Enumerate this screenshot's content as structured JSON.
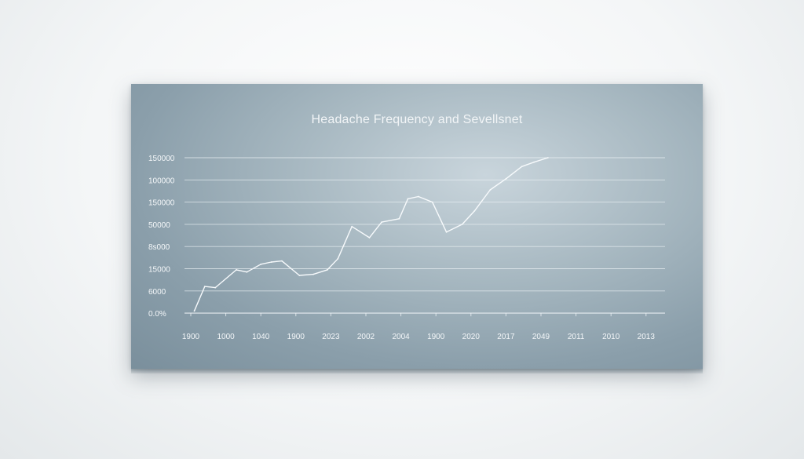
{
  "chart_data": {
    "type": "line",
    "title": "Headache Frequency and Sevellsnet",
    "xlabel": "",
    "ylabel": "",
    "y_tick_labels": [
      "0.0%",
      "6000",
      "15000",
      "8ѕ000",
      "50000",
      "150000",
      "100000",
      "150000"
    ],
    "x_tick_labels": [
      "1900",
      "1000",
      "1040",
      "1900",
      "2023",
      "2002",
      "2004",
      "1900",
      "2020",
      "2017",
      "2049",
      "2011",
      "2010",
      "2013"
    ],
    "y_range": [
      0,
      7
    ],
    "grid": true,
    "series": [
      {
        "points": [
          [
            0.1,
            0.1
          ],
          [
            0.4,
            1.2
          ],
          [
            0.7,
            1.15
          ],
          [
            1.3,
            1.95
          ],
          [
            1.6,
            1.85
          ],
          [
            2.0,
            2.2
          ],
          [
            2.3,
            2.3
          ],
          [
            2.6,
            2.35
          ],
          [
            3.1,
            1.7
          ],
          [
            3.5,
            1.75
          ],
          [
            3.9,
            1.95
          ],
          [
            4.2,
            2.45
          ],
          [
            4.6,
            3.9
          ],
          [
            5.1,
            3.4
          ],
          [
            5.45,
            4.1
          ],
          [
            5.95,
            4.25
          ],
          [
            6.2,
            5.15
          ],
          [
            6.5,
            5.25
          ],
          [
            6.9,
            5.0
          ],
          [
            7.3,
            3.65
          ],
          [
            7.75,
            4.0
          ],
          [
            8.1,
            4.6
          ],
          [
            8.55,
            5.55
          ],
          [
            9.0,
            6.05
          ],
          [
            9.45,
            6.6
          ],
          [
            9.8,
            6.8
          ],
          [
            10.2,
            7.0
          ]
        ]
      }
    ]
  }
}
